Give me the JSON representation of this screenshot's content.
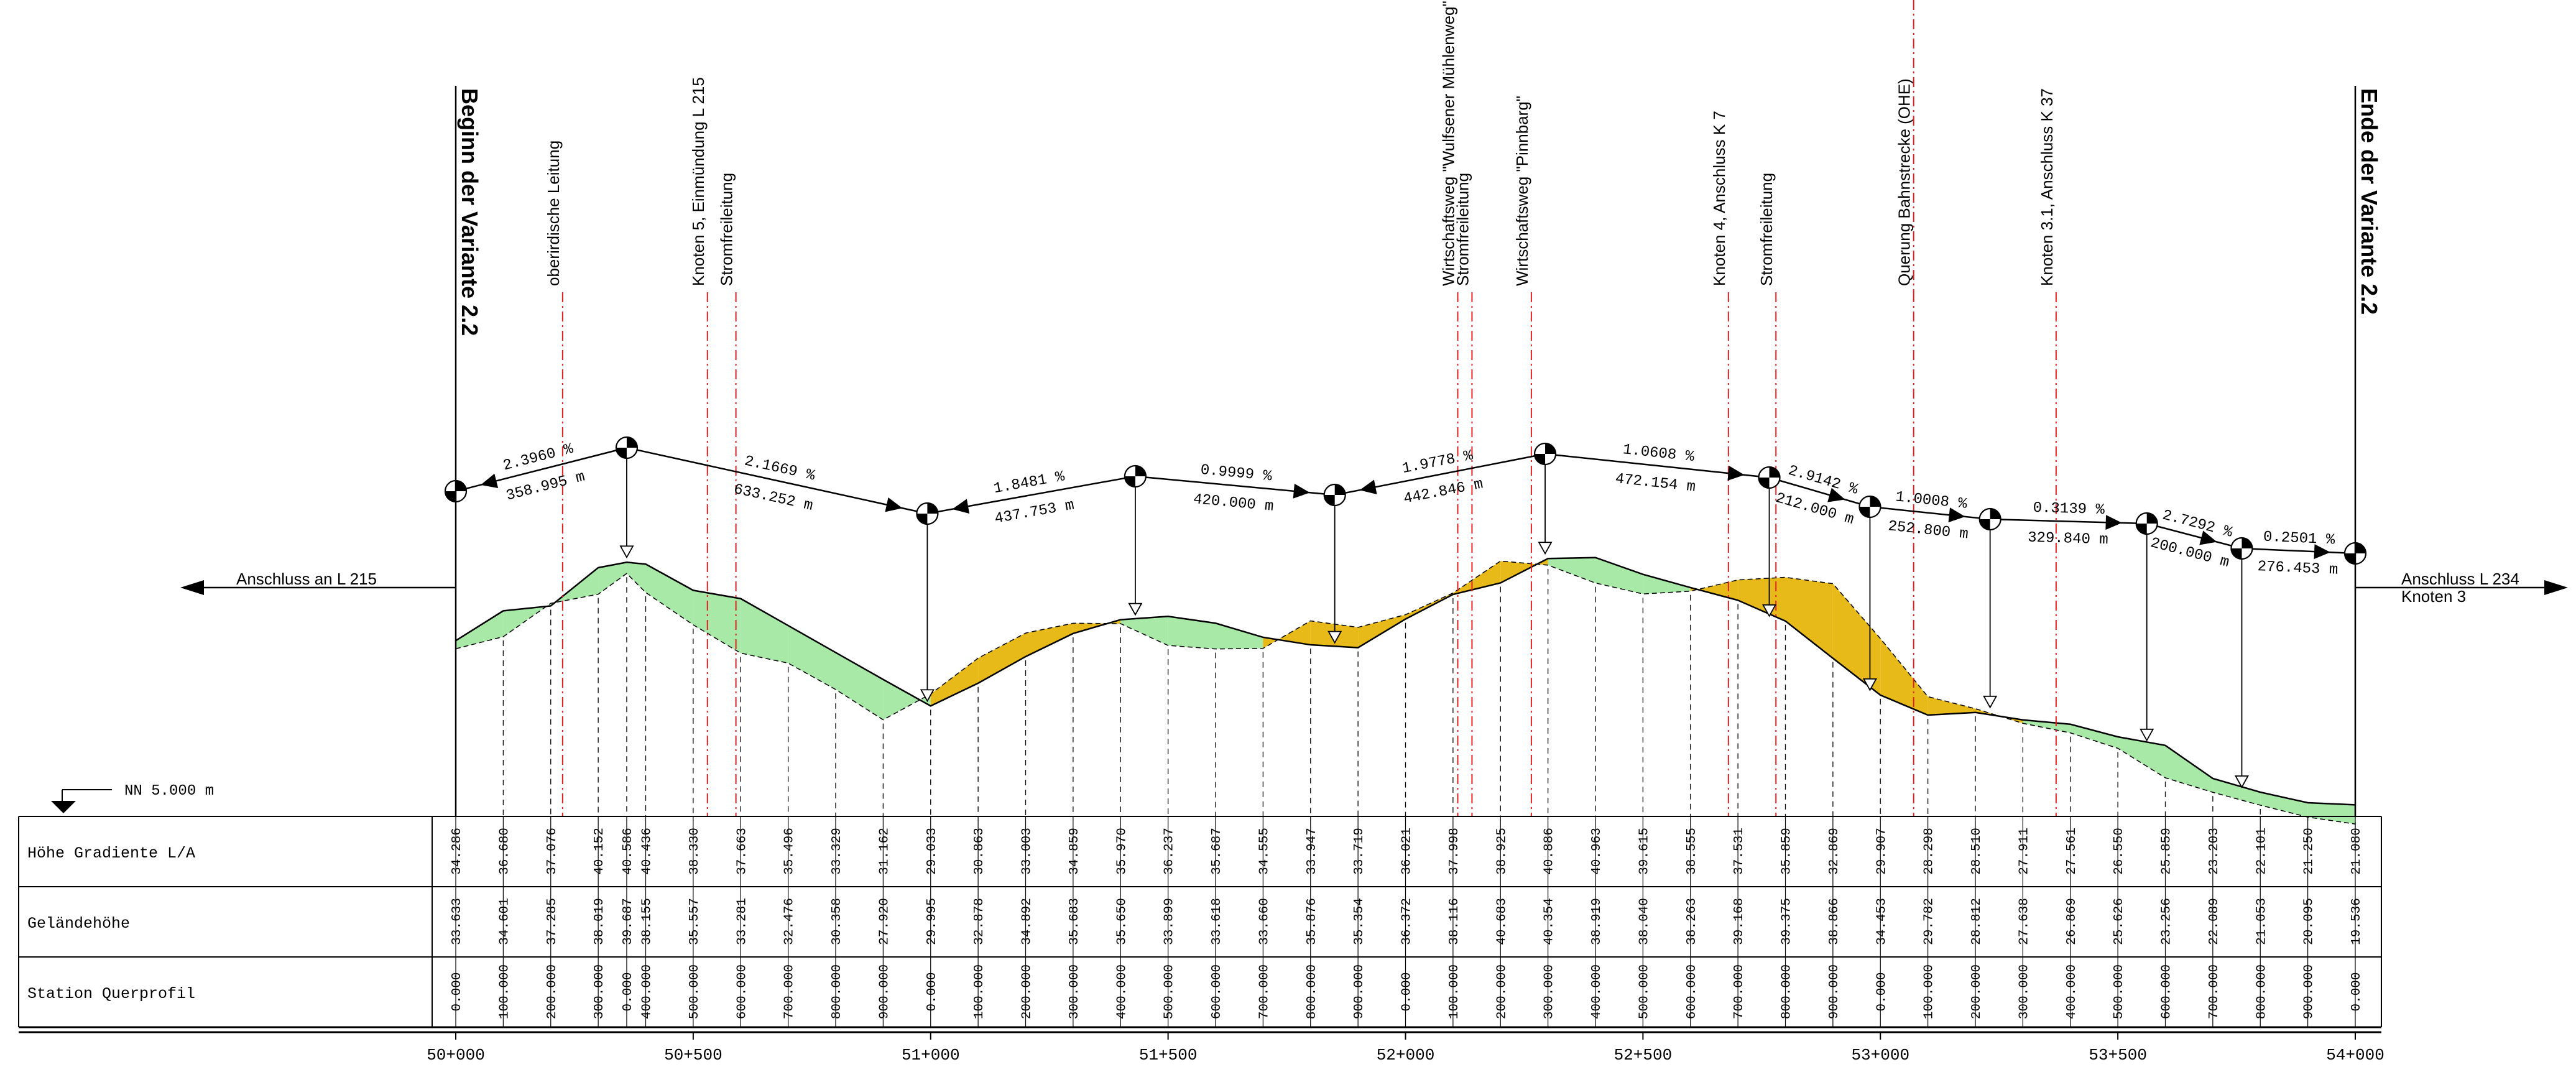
{
  "datum": "NN    5.000 m",
  "begin_label": "Beginn der Variante 2.2",
  "end_label": "Ende der Variante 2.2",
  "arrow_left_label": "Anschluss an L 215",
  "arrow_right_label": [
    "Anschluss L 234",
    "Knoten 3"
  ],
  "row_labels": [
    "Höhe Gradiente L/A",
    "Geländehöhe",
    "Station Querprofil"
  ],
  "km_labels": [
    {
      "st": 50000,
      "label": "50+000"
    },
    {
      "st": 50500,
      "label": "50+500"
    },
    {
      "st": 51000,
      "label": "51+000"
    },
    {
      "st": 51500,
      "label": "51+500"
    },
    {
      "st": 52000,
      "label": "52+000"
    },
    {
      "st": 52500,
      "label": "52+500"
    },
    {
      "st": 53000,
      "label": "53+000"
    },
    {
      "st": 53500,
      "label": "53+500"
    },
    {
      "st": 54000,
      "label": "54+000"
    }
  ],
  "features": [
    {
      "st": 50225,
      "text": "oberirdische Leitung"
    },
    {
      "st": 50530,
      "text": "Knoten 5, Einmündung L 215"
    },
    {
      "st": 50590,
      "text": "Stromfreileitung"
    },
    {
      "st": 52110,
      "text": "Wirtschaftsweg \"Wulfsener Mühlenweg\""
    },
    {
      "st": 52140,
      "text": "Stromfreileitung"
    },
    {
      "st": 52265,
      "text": "Wirtschaftsweg \"Pinnbarg\""
    },
    {
      "st": 52680,
      "text": "Knoten 4, Anschluss K 7"
    },
    {
      "st": 52780,
      "text": "Stromfreileitung"
    },
    {
      "st": 53070,
      "text": "Querung Bahnstrecke (OHE)"
    },
    {
      "st": 53370,
      "text": "Knoten 3.1, Anschluss K 37"
    }
  ],
  "grade_segments": [
    {
      "text": "2.3960 %",
      "len": "358.995 m"
    },
    {
      "text": "2.1669 %",
      "len": "633.252 m"
    },
    {
      "text": "1.8481 %",
      "len": "437.753 m"
    },
    {
      "text": "0.9999 %",
      "len": "420.000 m"
    },
    {
      "text": "1.9778 %",
      "len": "442.846 m"
    },
    {
      "text": "1.0608 %",
      "len": "472.154 m"
    },
    {
      "text": "2.9142 %",
      "len": "212.000 m"
    },
    {
      "text": "1.0008 %",
      "len": "252.800 m"
    },
    {
      "text": "0.3139 %",
      "len": "329.840 m"
    },
    {
      "text": "2.7292 %",
      "len": "200.000 m"
    },
    {
      "text": "0.2501 %",
      "len": "276.453 m"
    }
  ],
  "chart_data": {
    "type": "line",
    "title": "",
    "xlabel": "Station",
    "ylabel": "Höhe",
    "series": [
      {
        "name": "Höhe Gradiente L/A",
        "x": [
          50000,
          50100,
          50200,
          50300,
          50360,
          50400,
          50500,
          50600,
          50700,
          50800,
          50900,
          51000,
          51100,
          51200,
          51300,
          51400,
          51500,
          51600,
          51700,
          51800,
          51900,
          52000,
          52100,
          52200,
          52300,
          52400,
          52500,
          52600,
          52700,
          52800,
          52900,
          53000,
          53100,
          53200,
          53300,
          53400,
          53500,
          53600,
          53700,
          53800,
          53900,
          54000
        ],
        "values": [
          34.286,
          36.68,
          37.076,
          40.152,
          40.586,
          40.436,
          38.33,
          37.663,
          35.496,
          33.329,
          31.162,
          29.033,
          30.863,
          33.003,
          34.859,
          35.97,
          36.237,
          35.687,
          34.555,
          33.947,
          33.719,
          36.021,
          37.998,
          38.925,
          40.886,
          40.963,
          39.615,
          38.555,
          37.531,
          35.859,
          32.869,
          29.907,
          28.298,
          28.51,
          27.911,
          27.561,
          26.55,
          25.859,
          23.203,
          22.101,
          21.25,
          21.08
        ]
      },
      {
        "name": "Geländehöhe",
        "x": [
          50000,
          50100,
          50200,
          50300,
          50360,
          50400,
          50500,
          50600,
          50700,
          50800,
          50900,
          51000,
          51100,
          51200,
          51300,
          51400,
          51500,
          51600,
          51700,
          51800,
          51900,
          52000,
          52100,
          52200,
          52300,
          52400,
          52500,
          52600,
          52700,
          52800,
          52900,
          53000,
          53100,
          53200,
          53300,
          53400,
          53500,
          53600,
          53700,
          53800,
          53900,
          54000
        ],
        "values": [
          33.633,
          34.601,
          37.285,
          38.019,
          39.687,
          38.155,
          35.557,
          33.281,
          32.476,
          30.358,
          27.92,
          29.995,
          32.878,
          34.892,
          35.683,
          35.65,
          33.899,
          33.618,
          33.66,
          35.876,
          35.354,
          36.372,
          38.116,
          40.683,
          40.354,
          38.919,
          38.04,
          38.263,
          39.168,
          39.375,
          38.866,
          34.453,
          29.782,
          28.812,
          27.638,
          26.869,
          25.626,
          23.256,
          22.089,
          21.053,
          20.095,
          19.536
        ]
      }
    ],
    "station_labels": [
      "0.000",
      "100.000",
      "200.000",
      "300.000",
      "400.000",
      "500.000",
      "600.000",
      "700.000",
      "800.000",
      "900.000"
    ]
  }
}
